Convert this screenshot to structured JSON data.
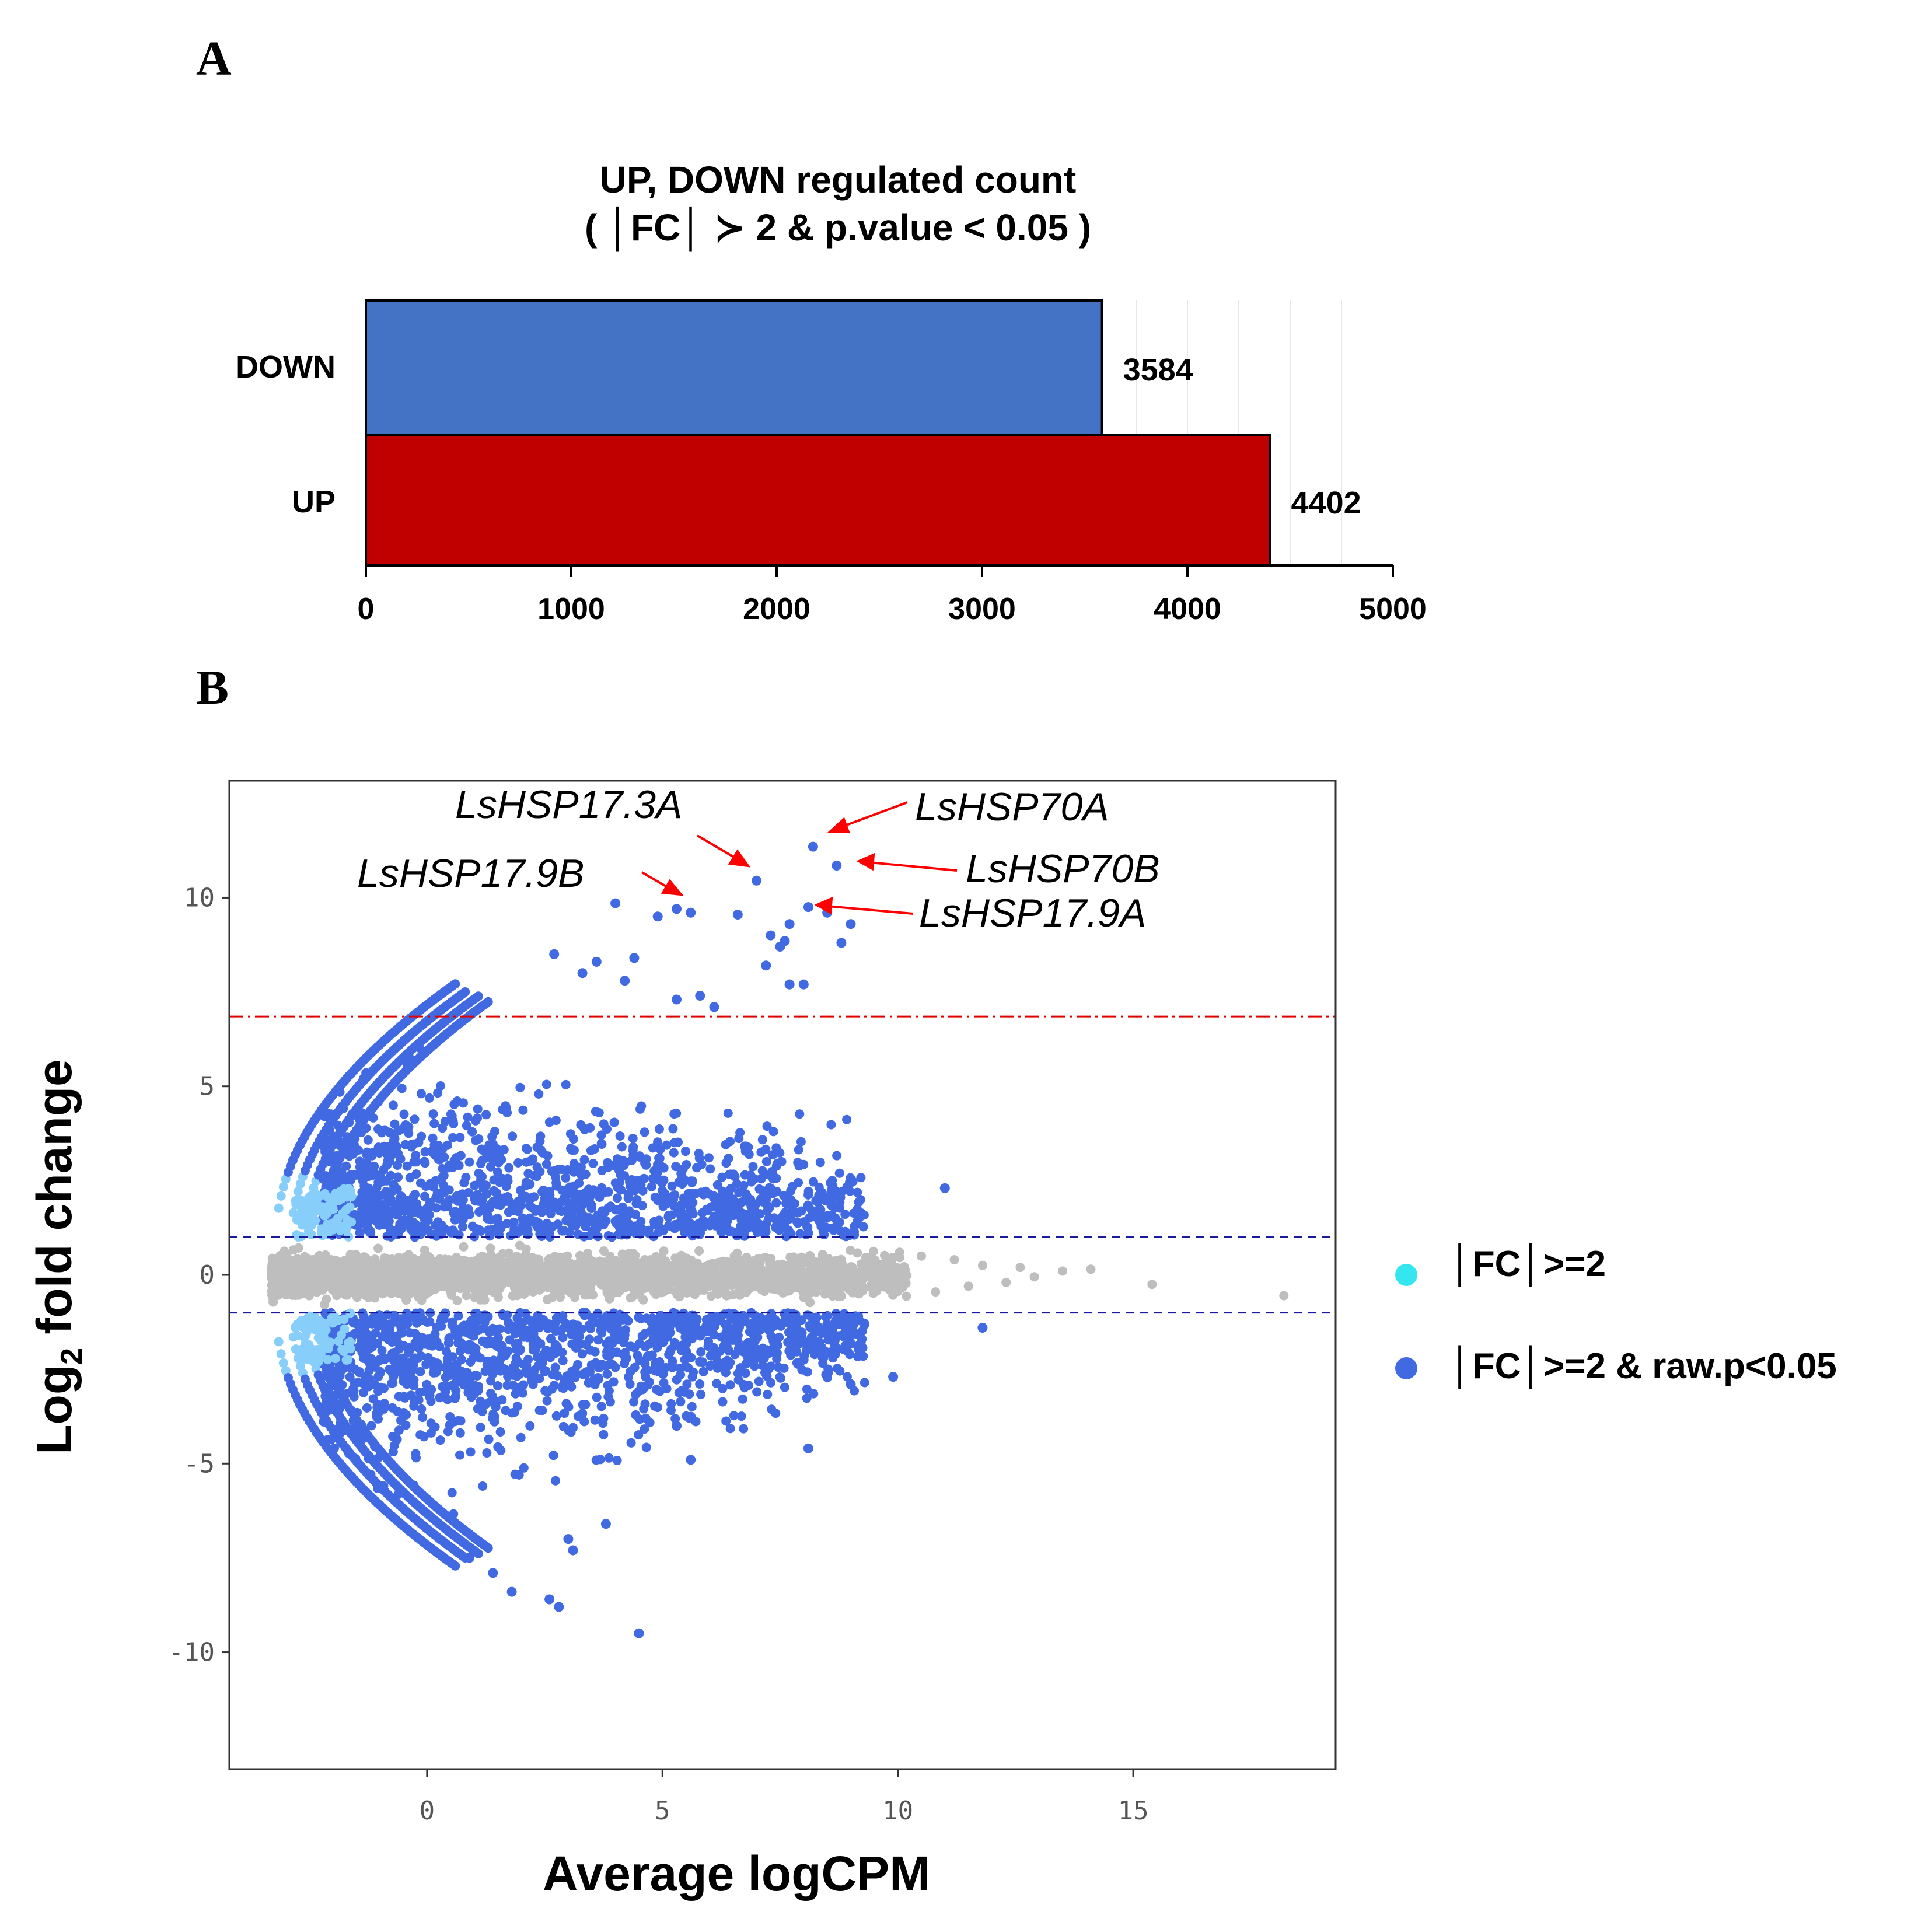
{
  "panels": {
    "a_label": "A",
    "b_label": "B"
  },
  "colors": {
    "down_bar": "#4472C4",
    "up_bar": "#C00000",
    "sig_point": "#4169E1",
    "fc_point": "#87CEFA",
    "nonsig_point": "#BEBEBE",
    "legend_fc": "#33E6F0",
    "threshold_red": "#E00000",
    "threshold_blue": "#1A1A9E"
  },
  "chart_data": [
    {
      "type": "bar",
      "orientation": "horizontal",
      "title_line1": "UP, DOWN regulated count",
      "title_line2": "( │FC│ ≻ 2 & p.value < 0.05 )",
      "categories": [
        "DOWN",
        "UP"
      ],
      "values": [
        3584,
        4402
      ],
      "value_labels": [
        "3584",
        "4402"
      ],
      "xlim": [
        0,
        5000
      ],
      "xticks": [
        0,
        1000,
        2000,
        3000,
        4000,
        5000
      ],
      "xtick_labels": [
        "0",
        "1000",
        "2000",
        "3000",
        "4000",
        "5000"
      ],
      "grid": "vertical minor lines"
    },
    {
      "type": "scatter",
      "xlabel": "Average logCPM",
      "ylabel_main": "Log",
      "ylabel_sub": "2",
      "ylabel_rest": " fold change",
      "xlim": [
        -4.2,
        19.3
      ],
      "ylim": [
        -13.1,
        13.1
      ],
      "xticks": [
        0,
        5,
        10,
        15
      ],
      "xtick_labels": [
        "0",
        "5",
        "10",
        "15"
      ],
      "yticks": [
        10,
        5,
        0,
        -5,
        -10
      ],
      "ytick_labels": [
        "10",
        "5",
        "0",
        "-5",
        "-10"
      ],
      "hlines": [
        {
          "y": 6.85,
          "style": "dashdot",
          "color": "red"
        },
        {
          "y": 1,
          "style": "dashed",
          "color": "blue"
        },
        {
          "y": -1,
          "style": "dashed",
          "color": "blue"
        }
      ],
      "legend": {
        "position": "right",
        "entries": [
          "│FC│>=2",
          "│FC│>=2 & raw.p<0.05"
        ]
      },
      "annotations": [
        {
          "label": "LsHSP17.3A",
          "x": 7.0,
          "y": 10.45
        },
        {
          "label": "LsHSP70A",
          "x": 8.25,
          "y": 11.35
        },
        {
          "label": "LsHSP70B",
          "x": 8.65,
          "y": 10.85
        },
        {
          "label": "LsHSP17.9B",
          "x": 5.3,
          "y": 9.65
        },
        {
          "label": "LsHSP17.9A",
          "x": 8.1,
          "y": 9.75
        }
      ],
      "highlighted_points": [
        {
          "x": 8.2,
          "y": 11.35
        },
        {
          "x": 8.7,
          "y": 10.85
        },
        {
          "x": 7.0,
          "y": 10.45
        },
        {
          "x": 4.0,
          "y": 9.85
        },
        {
          "x": 4.9,
          "y": 9.5
        },
        {
          "x": 5.3,
          "y": 9.7
        },
        {
          "x": 5.6,
          "y": 9.6
        },
        {
          "x": 6.6,
          "y": 9.55
        },
        {
          "x": 8.1,
          "y": 9.75
        },
        {
          "x": 8.5,
          "y": 9.6
        },
        {
          "x": 9.0,
          "y": 9.3
        },
        {
          "x": 7.7,
          "y": 9.3
        },
        {
          "x": 8.8,
          "y": 8.8
        },
        {
          "x": 7.3,
          "y": 9.0
        },
        {
          "x": 7.6,
          "y": 8.85
        },
        {
          "x": 2.7,
          "y": 8.5
        },
        {
          "x": 3.6,
          "y": 8.3
        },
        {
          "x": 4.4,
          "y": 8.4
        },
        {
          "x": 4.2,
          "y": 7.8
        },
        {
          "x": 3.3,
          "y": 8.0
        },
        {
          "x": 7.2,
          "y": 8.2
        },
        {
          "x": 7.7,
          "y": 7.7
        },
        {
          "x": 8.0,
          "y": 7.7
        },
        {
          "x": 5.3,
          "y": 7.3
        },
        {
          "x": 5.8,
          "y": 7.4
        },
        {
          "x": 6.1,
          "y": 7.1
        },
        {
          "x": 7.5,
          "y": 8.7
        },
        {
          "x": 4.5,
          "y": -9.5
        },
        {
          "x": 2.8,
          "y": -8.8
        },
        {
          "x": 2.6,
          "y": -8.6
        },
        {
          "x": 8.1,
          "y": -4.6
        },
        {
          "x": 5.6,
          "y": -4.9
        },
        {
          "x": 11.8,
          "y": -1.4
        },
        {
          "x": 11.0,
          "y": 2.3
        },
        {
          "x": 9.0,
          "y": -2.9
        },
        {
          "x": 9.9,
          "y": -2.7
        },
        {
          "x": 3.0,
          "y": -7.0
        },
        {
          "x": 3.1,
          "y": -7.3
        },
        {
          "x": 0.9,
          "y": -7.5
        },
        {
          "x": 1.4,
          "y": -7.9
        },
        {
          "x": 1.8,
          "y": -8.4
        },
        {
          "x": 3.8,
          "y": -6.6
        },
        {
          "x": 5.3,
          "y": -4.0
        }
      ],
      "nonsig_tail_points": [
        {
          "x": 18.2,
          "y": -0.55
        },
        {
          "x": 15.4,
          "y": -0.25
        },
        {
          "x": 14.1,
          "y": 0.15
        },
        {
          "x": 13.5,
          "y": 0.1
        },
        {
          "x": 12.9,
          "y": -0.05
        },
        {
          "x": 12.6,
          "y": 0.2
        },
        {
          "x": 12.3,
          "y": -0.2
        },
        {
          "x": 11.8,
          "y": 0.25
        },
        {
          "x": 11.5,
          "y": -0.3
        },
        {
          "x": 11.2,
          "y": 0.4
        },
        {
          "x": 10.8,
          "y": -0.45
        },
        {
          "x": 10.5,
          "y": 0.5
        }
      ]
    }
  ]
}
